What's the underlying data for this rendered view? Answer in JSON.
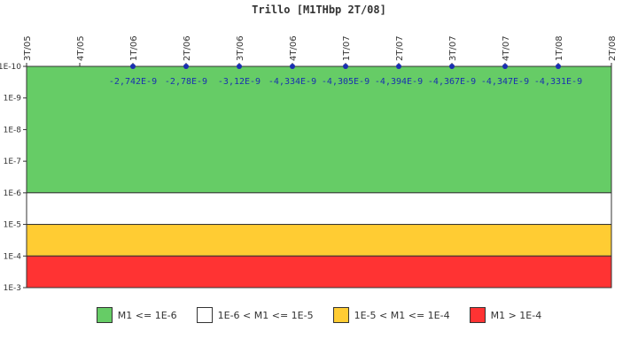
{
  "chart_data": {
    "type": "line",
    "title": "Trillo [M1THbp 2T/08]",
    "x": [
      "3T/05",
      "4T/05",
      "1T/06",
      "2T/06",
      "3T/06",
      "4T/06",
      "1T/07",
      "2T/07",
      "3T/07",
      "4T/07",
      "1T/08",
      "2T/08"
    ],
    "y_axis": {
      "scale": "log",
      "reversed": true,
      "tick_labels": [
        "1E-10",
        "1E-9",
        "1E-8",
        "1E-7",
        "1E-6",
        "1E-5",
        "1E-4",
        "1E-3"
      ],
      "ylim": [
        1e-10,
        0.001
      ]
    },
    "series": [
      {
        "x": [
          "1T/06",
          "2T/06",
          "3T/06",
          "4T/06",
          "1T/07",
          "2T/07",
          "3T/07",
          "4T/07",
          "1T/08"
        ],
        "values": [
          -2.742e-09,
          -2.78e-09,
          -3.12e-09,
          -4.334e-09,
          -4.305e-09,
          -4.394e-09,
          -4.367e-09,
          -4.347e-09,
          -4.331e-09
        ],
        "labels": [
          "-2,742E-9",
          "-2,78E-9",
          "-3,12E-9",
          "-4,334E-9",
          "-4,305E-9",
          "-4,394E-9",
          "-4,367E-9",
          "-4,347E-9",
          "-4,331E-9"
        ],
        "color": "#1a2fb0"
      }
    ],
    "bands": [
      {
        "from": 1e-10,
        "to": 1e-06,
        "color": "#66cc66",
        "label": "M1 <= 1E-6"
      },
      {
        "from": 1e-06,
        "to": 1e-05,
        "color": "#ffffff",
        "label": "1E-6 < M1 <= 1E-5"
      },
      {
        "from": 1e-05,
        "to": 0.0001,
        "color": "#ffcc33",
        "label": "1E-5 < M1 <= 1E-4"
      },
      {
        "from": 0.0001,
        "to": 0.001,
        "color": "#ff3333",
        "label": "M1 > 1E-4"
      }
    ],
    "legend_position": "bottom",
    "grid": false
  }
}
